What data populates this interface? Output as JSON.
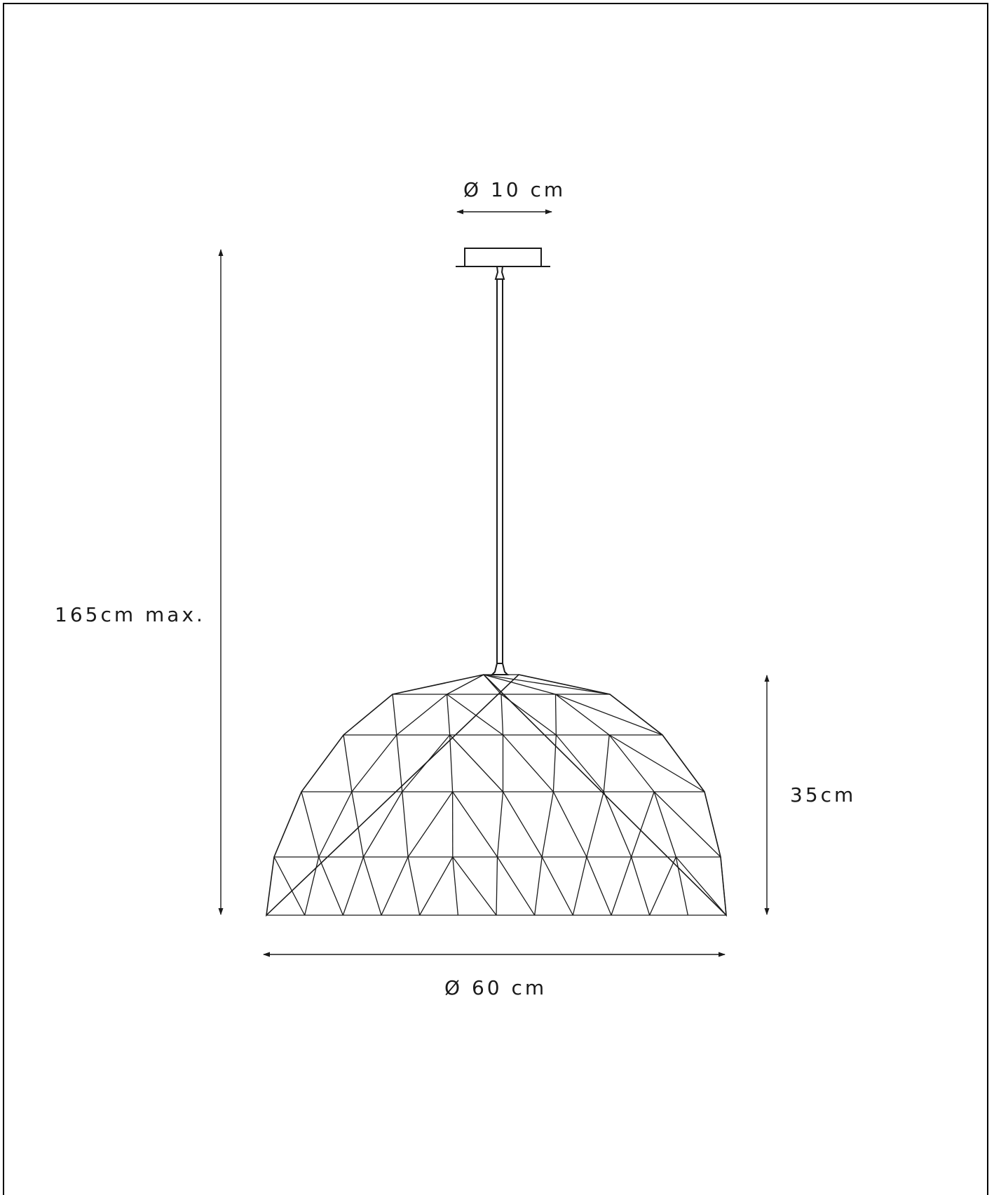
{
  "dimensions": {
    "canopy_diameter": "Ø 10 cm",
    "total_height": "165cm max.",
    "shade_height": "35cm",
    "shade_diameter": "Ø 60 cm"
  },
  "colors": {
    "line": "#1a1a1a",
    "frame": "#000000",
    "background": "#ffffff"
  }
}
